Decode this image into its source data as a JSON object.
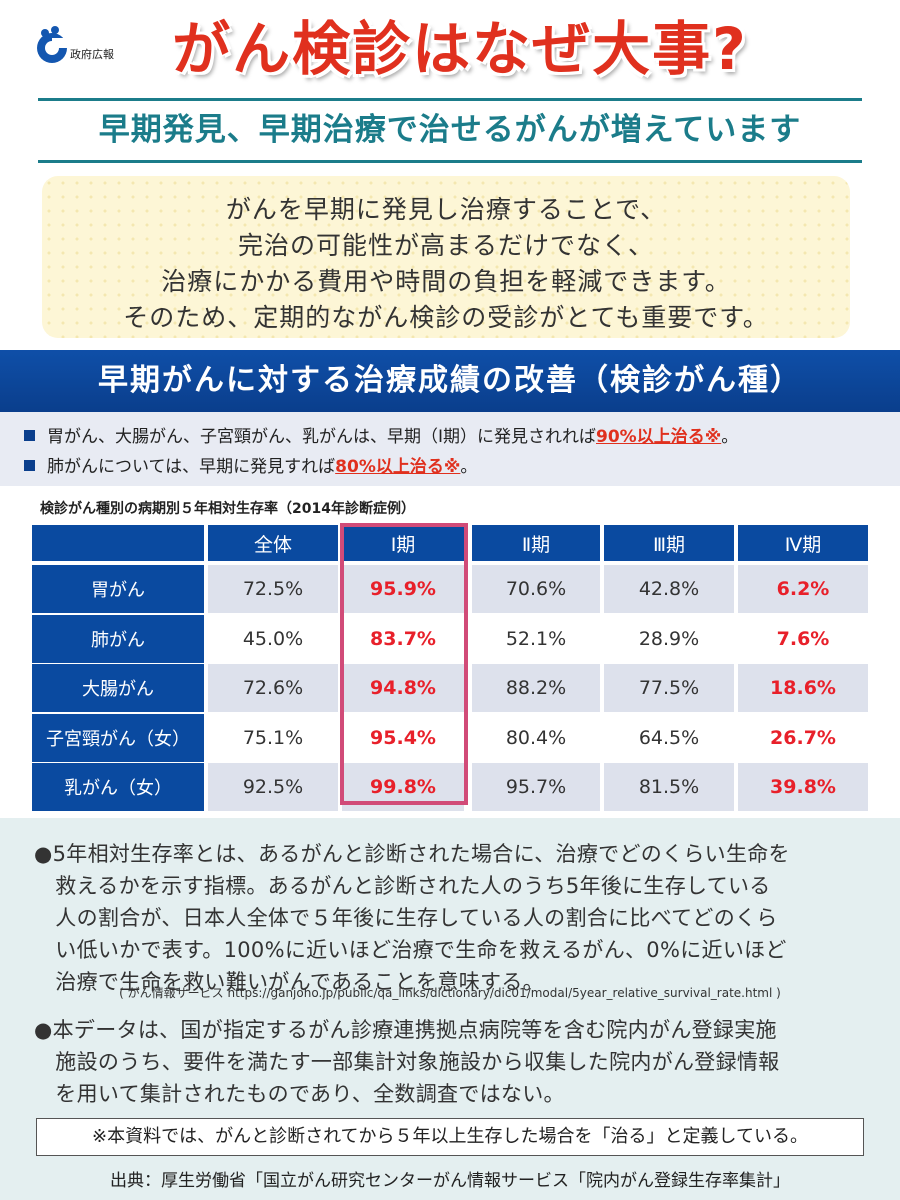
{
  "header": {
    "logo_text": "政府広報",
    "title": "がん検診はなぜ大事?",
    "subtitle": "早期発見、早期治療で治せるがんが増えています"
  },
  "intro": {
    "lines": [
      "がんを早期に発見し治療することで、",
      "完治の可能性が高まるだけでなく、",
      "治療にかかる費用や時間の負担を軽減できます。",
      "そのため、定期的ながん検診の受診がとても重要です。"
    ]
  },
  "section": {
    "heading": "早期がんに対する治療成績の改善（検診がん種）",
    "note1_text": "胃がん、大腸がん、子宮頸がん、乳がんは、早期（Ⅰ期）に発見されれば",
    "note1_emph": "90%以上治る※",
    "note1_end": "。",
    "note2_text": "肺がんについては、早期に発見すれば",
    "note2_emph": "80%以上治る※",
    "note2_end": "。"
  },
  "table": {
    "caption": "検診がん種別の病期別５年相対生存率（2014年診断症例）",
    "columns": [
      "",
      "全体",
      "Ⅰ期",
      "Ⅱ期",
      "Ⅲ期",
      "Ⅳ期"
    ],
    "rows": [
      {
        "label": "胃がん",
        "values": [
          "72.5%",
          "95.9%",
          "70.6%",
          "42.8%",
          "6.2%"
        ]
      },
      {
        "label": "肺がん",
        "values": [
          "45.0%",
          "83.7%",
          "52.1%",
          "28.9%",
          "7.6%"
        ]
      },
      {
        "label": "大腸がん",
        "values": [
          "72.6%",
          "94.8%",
          "88.2%",
          "77.5%",
          "18.6%"
        ]
      },
      {
        "label": "子宮頸がん（女）",
        "values": [
          "75.1%",
          "95.4%",
          "80.4%",
          "64.5%",
          "26.7%"
        ]
      },
      {
        "label": "乳がん（女）",
        "values": [
          "92.5%",
          "99.8%",
          "95.7%",
          "81.5%",
          "39.8%"
        ]
      }
    ]
  },
  "explanation": {
    "para1_lines": [
      "●5年相対生存率とは、あるがんと診断された場合に、治療でどのくらい生命を",
      "　救えるかを示す指標。あるがんと診断された人のうち5年後に生存している",
      "　人の割合が、日本人全体で５年後に生存している人の割合に比べてどのくら",
      "　い低いかで表す。100%に近いほど治療で生命を救えるがん、0%に近いほど",
      "　治療で生命を救い難いがんであることを意味する。"
    ],
    "source": "( がん情報サービス https://ganjoho.jp/public/qa_links/dictionary/dic01/modal/5year_relative_survival_rate.html )",
    "para2_lines": [
      "●本データは、国が指定するがん診療連携拠点病院等を含む院内がん登録実施",
      "　施設のうち、要件を満たす一部集計対象施設から収集した院内がん登録情報",
      "　を用いて集計されたものであり、全数調査ではない。"
    ],
    "definition": "※本資料では、がんと診断されてから５年以上生存した場合を「治る」と定義している。",
    "footer": "出典：厚生労働省「国立がん研究センターがん情報サービス「院内がん登録生存率集計」"
  },
  "colors": {
    "title_red": "#e0301e",
    "teal": "#1b7c8a",
    "navy": "#0a4aa0",
    "highlight_pink": "#d14b78",
    "value_red": "#e8202a"
  }
}
